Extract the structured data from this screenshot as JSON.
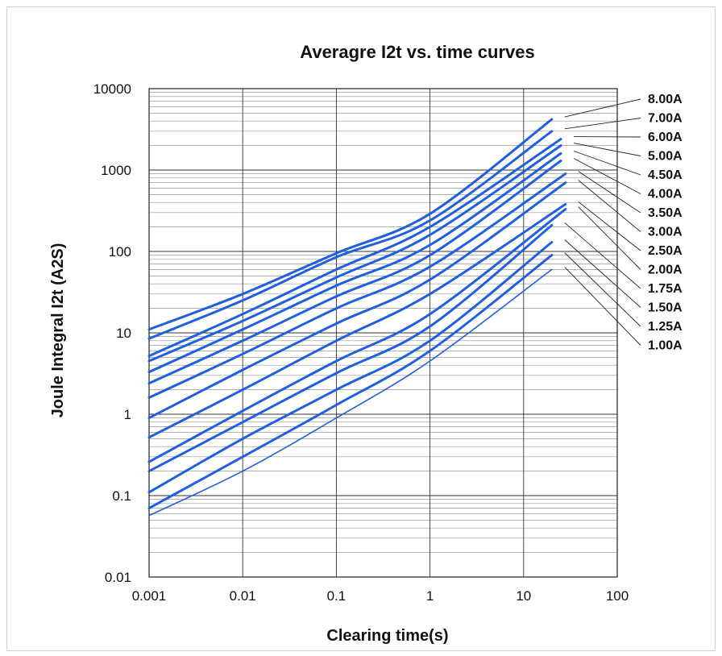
{
  "chart_data": {
    "type": "line",
    "title": "Averagre I2t vs. time curves",
    "xlabel": "Clearing time(s)",
    "ylabel": "Joule Integral I2t (A2S)",
    "xscale": "log",
    "yscale": "log",
    "xlim": [
      0.001,
      100
    ],
    "ylim": [
      0.01,
      10000
    ],
    "x_ticks": [
      "0.001",
      "0.01",
      "0.1",
      "1",
      "10",
      "100"
    ],
    "y_ticks": [
      "0.01",
      "0.1",
      "1",
      "10",
      "100",
      "1000",
      "10000"
    ],
    "grid": true,
    "legend_position": "right",
    "line_color": "#1f5fe0",
    "series": [
      {
        "name": "8.00A",
        "x": [
          0.001,
          0.01,
          0.1,
          1,
          20
        ],
        "y": [
          11,
          30,
          95,
          290,
          4200
        ]
      },
      {
        "name": "7.00A",
        "x": [
          0.001,
          0.01,
          0.1,
          1,
          20
        ],
        "y": [
          8.5,
          25,
          85,
          240,
          3000
        ]
      },
      {
        "name": "6.00A",
        "x": [
          0.001,
          0.01,
          0.1,
          1,
          25
        ],
        "y": [
          5.2,
          17,
          60,
          200,
          2400
        ]
      },
      {
        "name": "5.00A",
        "x": [
          0.001,
          0.01,
          0.1,
          1,
          25
        ],
        "y": [
          4.5,
          14,
          48,
          160,
          2000
        ]
      },
      {
        "name": "4.50A",
        "x": [
          0.001,
          0.01,
          0.1,
          1,
          25
        ],
        "y": [
          3.3,
          11,
          38,
          120,
          1600
        ]
      },
      {
        "name": "4.00A",
        "x": [
          0.001,
          0.01,
          0.1,
          1,
          25
        ],
        "y": [
          2.4,
          8,
          28,
          90,
          1300
        ]
      },
      {
        "name": "3.50A",
        "x": [
          0.001,
          0.01,
          0.1,
          1,
          28
        ],
        "y": [
          1.6,
          5.5,
          20,
          65,
          900
        ]
      },
      {
        "name": "3.00A",
        "x": [
          0.001,
          0.01,
          0.1,
          1,
          28
        ],
        "y": [
          0.9,
          3.5,
          13,
          45,
          700
        ]
      },
      {
        "name": "2.50A",
        "x": [
          0.001,
          0.01,
          0.1,
          1,
          28
        ],
        "y": [
          0.52,
          2,
          8,
          30,
          380
        ]
      },
      {
        "name": "2.00A",
        "x": [
          0.001,
          0.01,
          0.1,
          1,
          28
        ],
        "y": [
          0.26,
          1.1,
          4.5,
          17,
          330
        ]
      },
      {
        "name": "1.75A",
        "x": [
          0.001,
          0.01,
          0.1,
          1,
          20
        ],
        "y": [
          0.2,
          0.8,
          3.2,
          12,
          210
        ]
      },
      {
        "name": "1.50A",
        "x": [
          0.001,
          0.01,
          0.1,
          1,
          20
        ],
        "y": [
          0.11,
          0.5,
          2,
          8,
          130
        ]
      },
      {
        "name": "1.25A",
        "x": [
          0.001,
          0.01,
          0.1,
          1,
          20
        ],
        "y": [
          0.07,
          0.3,
          1.3,
          6,
          90
        ]
      },
      {
        "name": "1.00A",
        "x": [
          0.001,
          0.01,
          0.1,
          1,
          20
        ],
        "y": [
          0.057,
          0.2,
          0.9,
          4.5,
          60
        ]
      }
    ]
  }
}
